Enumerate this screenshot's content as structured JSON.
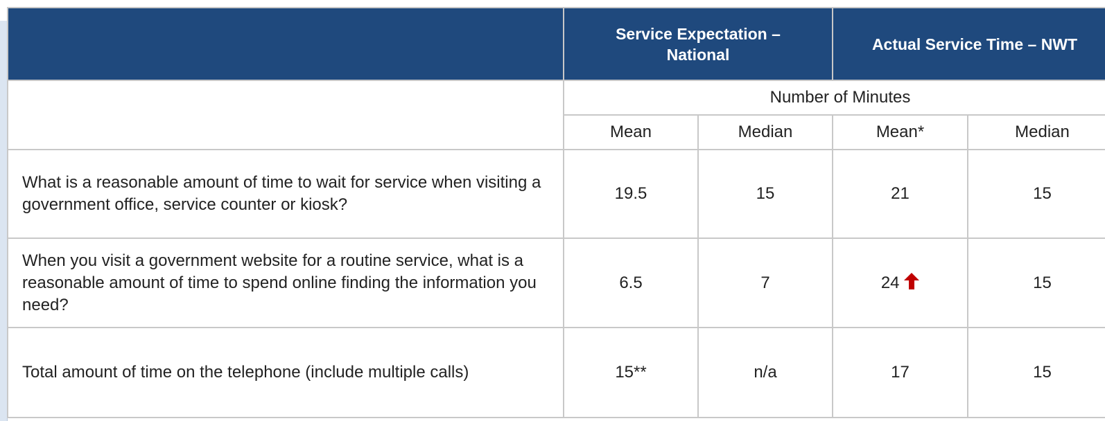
{
  "table": {
    "columns": [
      "Service Expectation – National",
      "Actual Service Time – NWT"
    ],
    "unit": "Number of Minutes",
    "subcolumns": [
      "Mean",
      "Median",
      "Mean*",
      "Median"
    ],
    "rows": [
      {
        "label": "What is a reasonable amount of time to wait for service when visiting a government office, service counter or kiosk?",
        "values": [
          19.5,
          15,
          21,
          15
        ]
      },
      {
        "label": "When you visit a government website for a routine service, what is a reasonable amount of time to spend online finding the information you need?",
        "values": [
          6.5,
          7,
          24,
          15
        ]
      },
      {
        "label": "Total amount of time on the telephone (include multiple calls)",
        "values": [
          "15**",
          "n/a",
          17,
          15
        ]
      }
    ]
  }
}
